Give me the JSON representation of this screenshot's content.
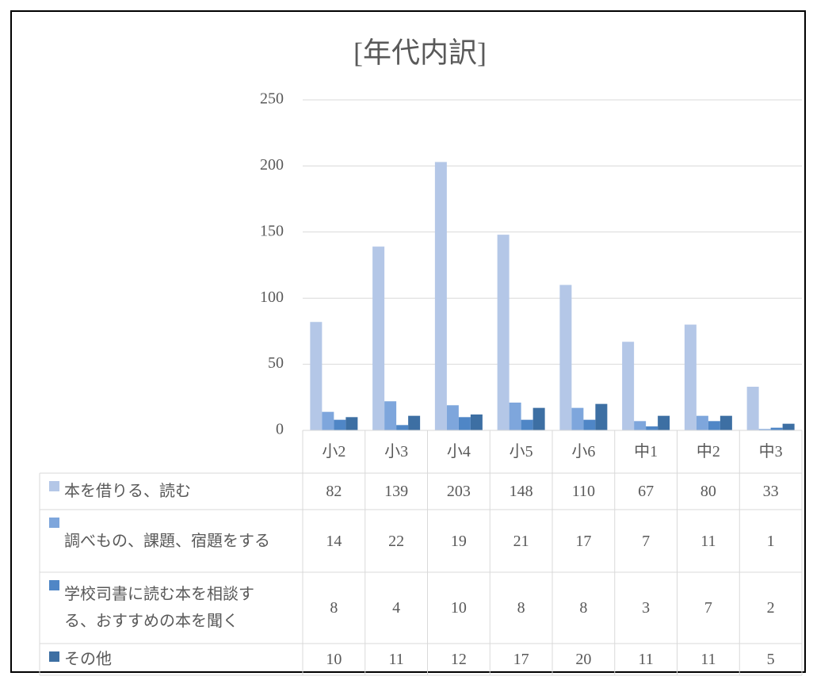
{
  "chart_data": {
    "type": "bar",
    "title": "[年代内訳]",
    "categories": [
      "小2",
      "小3",
      "小4",
      "小5",
      "小6",
      "中1",
      "中2",
      "中3"
    ],
    "series": [
      {
        "name": "本を借りる、読む",
        "color": "#b4c7e7",
        "values": [
          82,
          139,
          203,
          148,
          110,
          67,
          80,
          33
        ]
      },
      {
        "name": "調べもの、課題、宿題をする",
        "color": "#7ea6dc",
        "values": [
          14,
          22,
          19,
          21,
          17,
          7,
          11,
          1
        ]
      },
      {
        "name": "学校司書に読む本を相談する、おすすめの本を聞く",
        "color": "#4f86c6",
        "values": [
          8,
          4,
          10,
          8,
          8,
          3,
          7,
          2
        ]
      },
      {
        "name": "その他",
        "color": "#3d6fa3",
        "values": [
          10,
          11,
          12,
          17,
          20,
          11,
          11,
          5
        ]
      }
    ],
    "ylim": [
      0,
      250
    ],
    "yticks": [
      0,
      50,
      100,
      150,
      200,
      250
    ],
    "grid": true,
    "legend": "table"
  }
}
